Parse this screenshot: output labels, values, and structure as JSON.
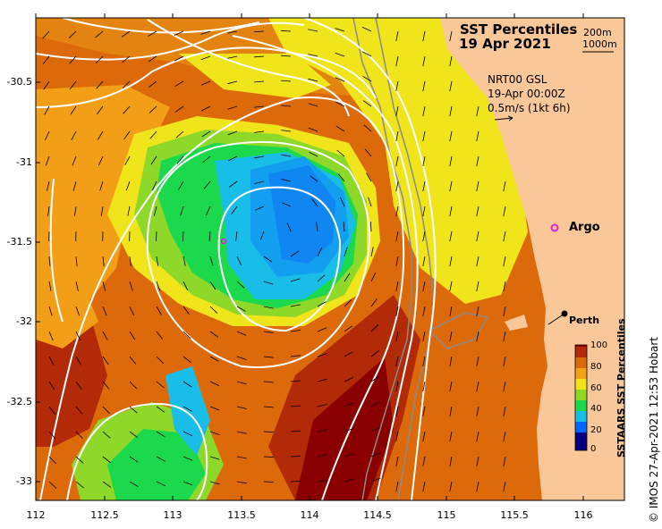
{
  "map": {
    "title": "SST Percentiles",
    "date": "19 Apr 2021",
    "bathymetry_labels": [
      "200m",
      "1000m"
    ],
    "product": "NRT00 GSL",
    "time": "19-Apr 00:00Z",
    "vector_scale": "0.5m/s (1kt 6h)",
    "latitude_labels": [
      "-30.5",
      "-31",
      "-31.5",
      "-32",
      "-32.5",
      "-33"
    ],
    "longitude_labels": [
      "112",
      "112.5",
      "113",
      "113.5",
      "114",
      "114.5",
      "115",
      "115.5",
      "116"
    ],
    "places": [
      {
        "name": "Argo",
        "marker": "magenta-ring"
      },
      {
        "name": "Perth",
        "marker": "black-dot"
      }
    ],
    "colorbar": {
      "title": "SSTAARS SST Percentiles",
      "ticks": [
        "100",
        "80",
        "60",
        "40",
        "20",
        "0"
      ],
      "colors": [
        "#00007f",
        "#0066ff",
        "#18bde8",
        "#1cd84c",
        "#8ed82a",
        "#f0e41a",
        "#f2a216",
        "#dc6a0a",
        "#b22a08",
        "#8a0000"
      ]
    },
    "credit": "© IMOS 27-Apr-2021 12:53 Hobart",
    "colors": {
      "land": "#fac898",
      "bathymetry_200m": "#8a8a8a",
      "ssh_contours": "#ffffff"
    }
  }
}
